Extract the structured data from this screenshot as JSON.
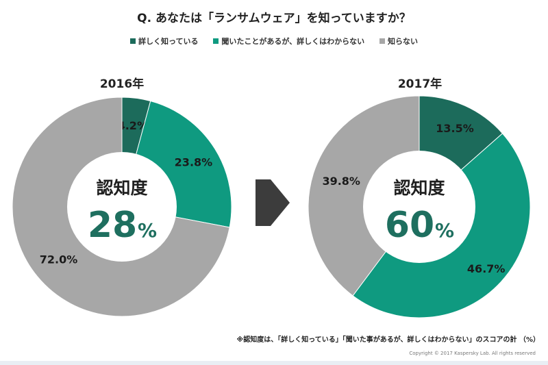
{
  "title": "Q. あなたは「ランサムウェア」を知っていますか？",
  "colors": {
    "know_well": "#1c6b5b",
    "heard": "#0f9a80",
    "dont_know": "#a7a7a7",
    "arrow": "#3c3c3c",
    "center_value": "#1e6f5f"
  },
  "legend": [
    {
      "key": "know_well",
      "label": "詳しく知っている"
    },
    {
      "key": "heard",
      "label": "聞いたことがあるが、詳しくはわからない"
    },
    {
      "key": "dont_know",
      "label": "知らない"
    }
  ],
  "chart_data": [
    {
      "type": "pie",
      "title": "2016年",
      "categories": [
        "詳しく知っている",
        "聞いたことがあるが、詳しくはわからない",
        "知らない"
      ],
      "values": [
        4.2,
        23.8,
        72.0
      ],
      "labels": [
        "4.2%",
        "23.8%",
        "72.0%"
      ],
      "center_label": "認知度",
      "center_value": "28",
      "center_unit": "%"
    },
    {
      "type": "pie",
      "title": "2017年",
      "categories": [
        "詳しく知っている",
        "聞いたことがあるが、詳しくはわからない",
        "知らない"
      ],
      "values": [
        13.5,
        46.7,
        39.8
      ],
      "labels": [
        "13.5%",
        "46.7%",
        "39.8%"
      ],
      "center_label": "認知度",
      "center_value": "60",
      "center_unit": "%"
    }
  ],
  "footnote": "※認知度は、「詳しく知っている」「聞いた事があるが、詳しくはわからない」のスコアの計 （%）",
  "copyright": "Copyright © 2017 Kaspersky Lab. All rights reserved"
}
